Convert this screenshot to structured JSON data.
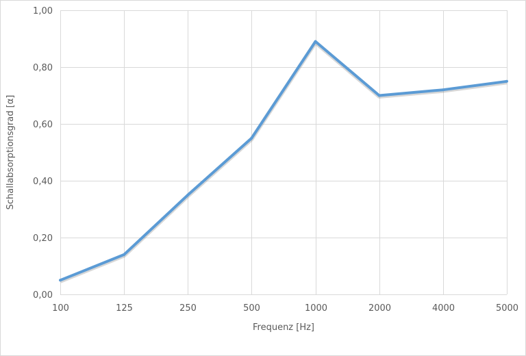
{
  "chart_data": {
    "type": "line",
    "title": "",
    "xlabel": "Frequenz [Hz]",
    "ylabel": "Schallabsorptionsgrad [α]",
    "categories": [
      "100",
      "125",
      "250",
      "500",
      "1000",
      "2000",
      "4000",
      "5000"
    ],
    "series": [
      {
        "values": [
          0.05,
          0.14,
          0.35,
          0.55,
          0.89,
          0.7,
          0.72,
          0.75
        ],
        "color": "#5b9bd5"
      }
    ],
    "ylim": [
      0,
      1
    ],
    "yticks": [
      0,
      0.2,
      0.4,
      0.6,
      0.8,
      1.0
    ],
    "ytick_labels": [
      "0,00",
      "0,20",
      "0,40",
      "0,60",
      "0,80",
      "1,00"
    ],
    "grid": true,
    "legend": "none"
  }
}
